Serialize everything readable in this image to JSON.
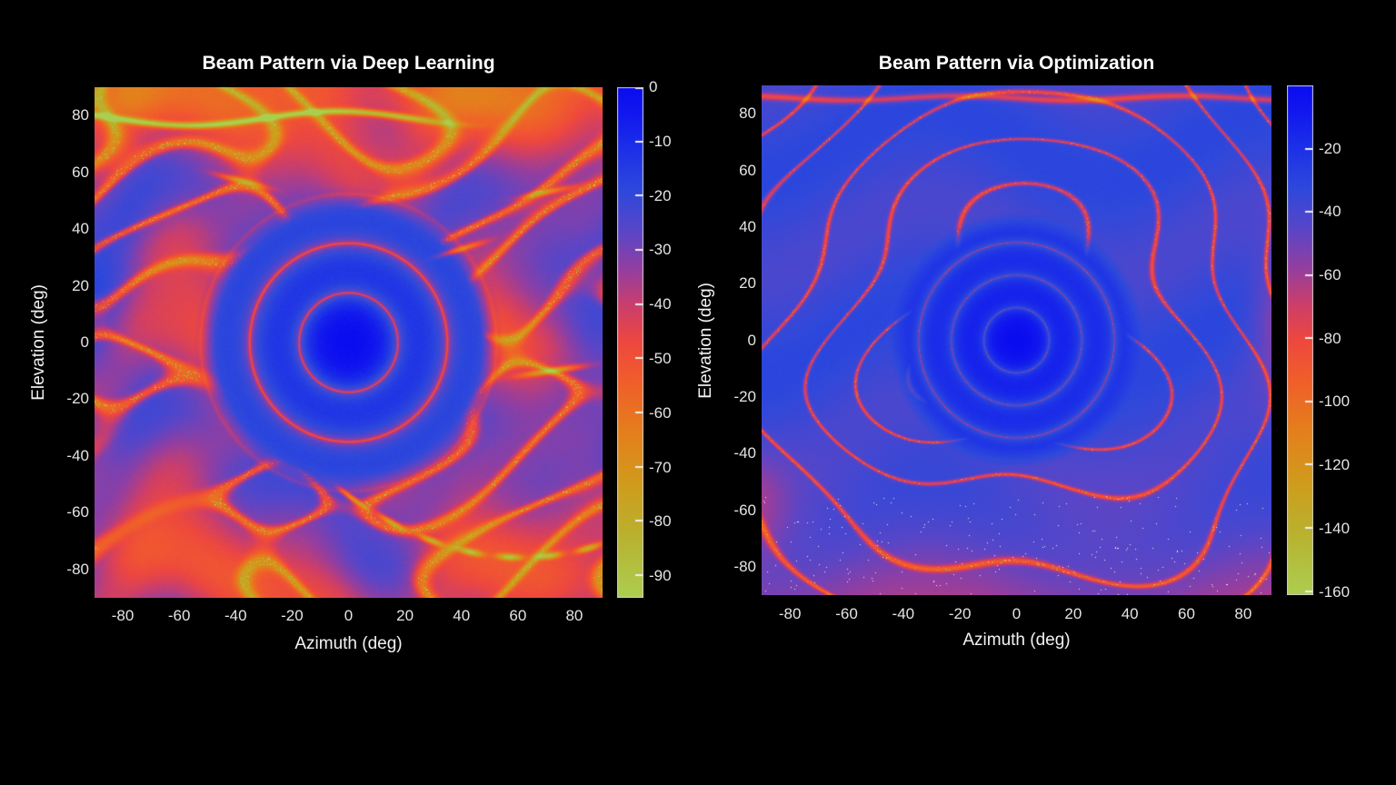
{
  "figure": {
    "background_color": "#000000",
    "title_color": "#ffffff",
    "tick_color": "#e4e4e4",
    "colorbar_border_color": "#cccccc"
  },
  "colormap": {
    "name": "blue-purple-red-orange-yellowgreen (max to min)",
    "stops": [
      [
        0.0,
        10,
        12,
        240
      ],
      [
        0.055,
        18,
        25,
        238
      ],
      [
        0.12,
        28,
        48,
        232
      ],
      [
        0.2,
        45,
        72,
        220
      ],
      [
        0.28,
        88,
        70,
        200
      ],
      [
        0.36,
        150,
        62,
        158
      ],
      [
        0.43,
        205,
        62,
        105
      ],
      [
        0.5,
        238,
        72,
        62
      ],
      [
        0.58,
        240,
        95,
        42
      ],
      [
        0.68,
        228,
        128,
        28
      ],
      [
        0.78,
        208,
        156,
        28
      ],
      [
        0.88,
        185,
        178,
        48
      ],
      [
        1.0,
        172,
        206,
        80
      ]
    ]
  },
  "chart_data": [
    {
      "type": "heatmap",
      "title": "Beam Pattern via Deep Learning",
      "xlabel": "Azimuth (deg)",
      "ylabel": "Elevation (deg)",
      "x_range": [
        -90,
        90
      ],
      "y_range": [
        -90,
        90
      ],
      "x_ticks": [
        -80,
        -60,
        -40,
        -20,
        0,
        20,
        40,
        60,
        80
      ],
      "y_ticks": [
        80,
        60,
        40,
        20,
        0,
        -20,
        -40,
        -60,
        -80
      ],
      "colorbar": {
        "range_db": [
          0,
          -94
        ],
        "ticks": [
          0,
          -10,
          -20,
          -30,
          -40,
          -50,
          -60,
          -70,
          -80,
          -90
        ]
      },
      "beam_model": {
        "style": "deep-learning",
        "main_lobe": {
          "azimuth_deg": 0,
          "elevation_deg": 0,
          "peak_db": 0
        },
        "first_null_radius_deg": 17.5,
        "sidelobe_ring_radii_deg": [
          17.5,
          35
        ],
        "ring_null_floor_db": -48,
        "background_level_db": -45,
        "blue_band_level_db": -20,
        "deep_null_streak_db": -86,
        "notes": "red/pink background with wavy blue sidelobe bands, blue bullseye main lobe at (0,0), yellow-green deep-null streak near elevation 80 and arcs in lower right"
      }
    },
    {
      "type": "heatmap",
      "title": "Beam Pattern via Optimization",
      "xlabel": "Azimuth (deg)",
      "ylabel": "Elevation (deg)",
      "x_range": [
        -90,
        90
      ],
      "y_range": [
        -90,
        90
      ],
      "x_ticks": [
        -80,
        -60,
        -40,
        -20,
        0,
        20,
        40,
        60,
        80
      ],
      "y_ticks": [
        80,
        60,
        40,
        20,
        0,
        -20,
        -40,
        -60,
        -80
      ],
      "colorbar": {
        "range_db": [
          0,
          -161
        ],
        "ticks": [
          -20,
          -40,
          -60,
          -80,
          -100,
          -120,
          -140,
          -160
        ]
      },
      "beam_model": {
        "style": "optimization",
        "main_lobe": {
          "azimuth_deg": 0,
          "elevation_deg": 0,
          "peak_db": 0
        },
        "first_null_radius_deg": 11.5,
        "sidelobe_ring_radii_deg": [
          11.5,
          23,
          34.5
        ],
        "ring_null_floor_db": -88,
        "background_level_db": -36,
        "null_contour_level_db": -80,
        "deep_null_line_elevation_deg": 85.5,
        "notes": "mostly blue field with thin red null contour curves dotted with pale specks, blue bullseye main lobe at (0,0), horizontal red null line near elevation 85, purple lower region with scattered pale dots"
      }
    }
  ]
}
